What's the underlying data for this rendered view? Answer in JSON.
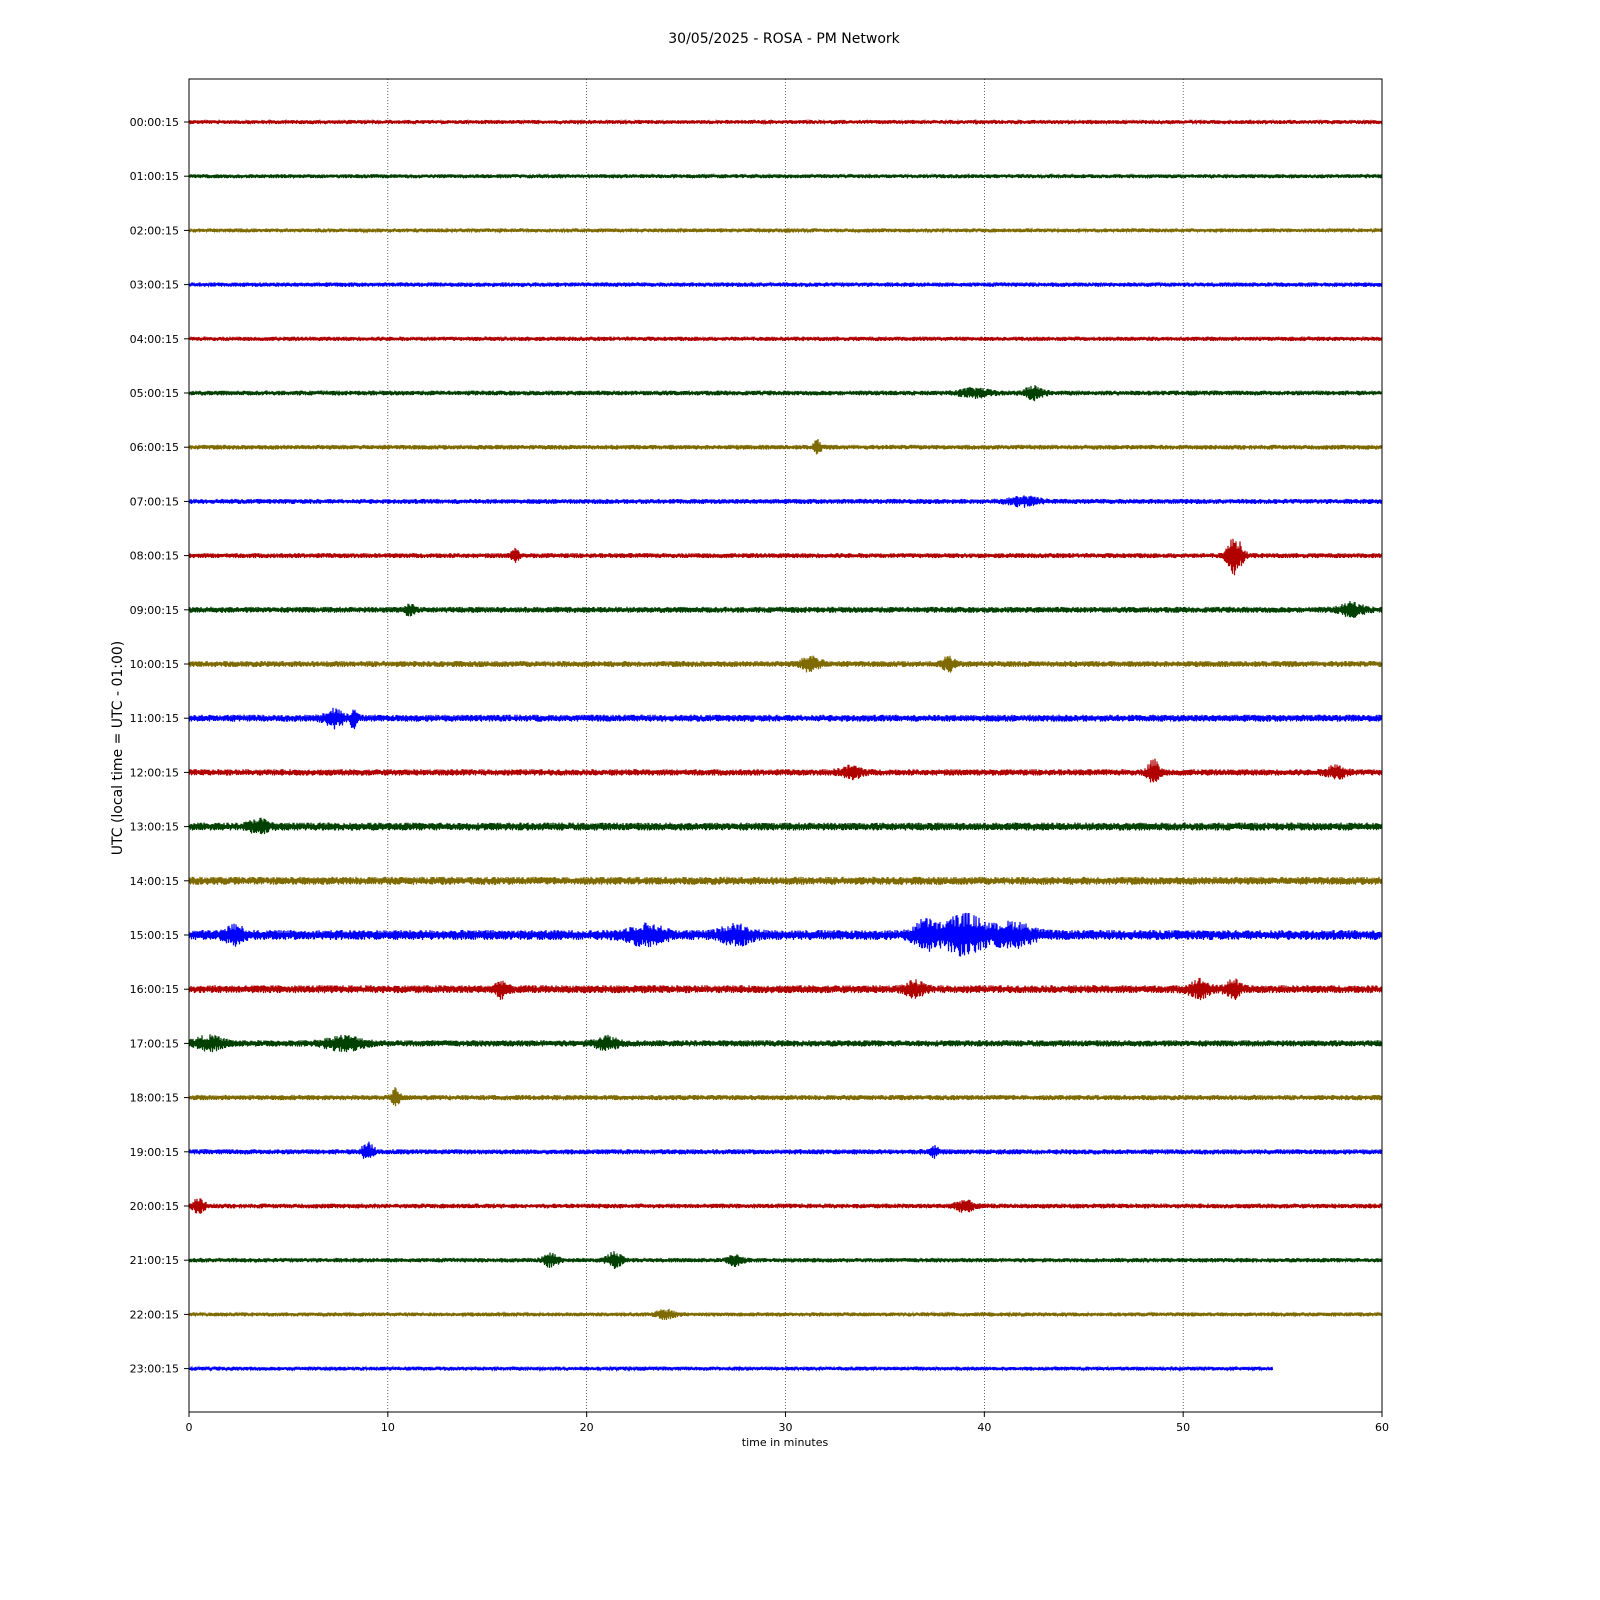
{
  "chart_data": {
    "type": "line",
    "title": "30/05/2025 - ROSA - PM Network",
    "xlabel": "time in minutes",
    "ylabel": "UTC (local time = UTC - 01:00)",
    "xlim": [
      0,
      60
    ],
    "xticks": [
      0,
      10,
      20,
      30,
      40,
      50,
      60
    ],
    "grid": "vertical",
    "series_colors": [
      "#b00000",
      "#004000",
      "#7f6a00",
      "#0000ff"
    ],
    "rows": [
      {
        "label": "00:00:15",
        "end": 60,
        "amp": 2.0,
        "events": []
      },
      {
        "label": "01:00:15",
        "end": 60,
        "amp": 2.0,
        "events": []
      },
      {
        "label": "02:00:15",
        "end": 60,
        "amp": 2.0,
        "events": []
      },
      {
        "label": "03:00:15",
        "end": 60,
        "amp": 2.2,
        "events": []
      },
      {
        "label": "04:00:15",
        "end": 60,
        "amp": 2.2,
        "events": []
      },
      {
        "label": "05:00:15",
        "end": 60,
        "amp": 2.4,
        "events": [
          {
            "t": 39.5,
            "a": 4,
            "w": 0.8
          },
          {
            "t": 42.5,
            "a": 6,
            "w": 0.5
          }
        ]
      },
      {
        "label": "06:00:15",
        "end": 60,
        "amp": 2.4,
        "events": [
          {
            "t": 31.6,
            "a": 6,
            "w": 0.2
          }
        ]
      },
      {
        "label": "07:00:15",
        "end": 60,
        "amp": 2.5,
        "events": [
          {
            "t": 42,
            "a": 4,
            "w": 0.8
          }
        ]
      },
      {
        "label": "08:00:15",
        "end": 60,
        "amp": 2.5,
        "events": [
          {
            "t": 16.4,
            "a": 6,
            "w": 0.2
          },
          {
            "t": 52.6,
            "a": 18,
            "w": 0.4
          }
        ]
      },
      {
        "label": "09:00:15",
        "end": 60,
        "amp": 3.0,
        "events": [
          {
            "t": 11.1,
            "a": 7,
            "w": 0.2
          },
          {
            "t": 58.5,
            "a": 6,
            "w": 0.6
          }
        ]
      },
      {
        "label": "10:00:15",
        "end": 60,
        "amp": 3.0,
        "events": [
          {
            "t": 31.3,
            "a": 7,
            "w": 0.5
          },
          {
            "t": 38.2,
            "a": 7,
            "w": 0.3
          }
        ]
      },
      {
        "label": "11:00:15",
        "end": 60,
        "amp": 3.5,
        "events": [
          {
            "t": 7.3,
            "a": 8,
            "w": 0.5
          },
          {
            "t": 8.3,
            "a": 12,
            "w": 0.15
          }
        ]
      },
      {
        "label": "12:00:15",
        "end": 60,
        "amp": 3.2,
        "events": [
          {
            "t": 33.3,
            "a": 5,
            "w": 0.6
          },
          {
            "t": 48.5,
            "a": 12,
            "w": 0.3
          },
          {
            "t": 57.7,
            "a": 6,
            "w": 0.5
          }
        ]
      },
      {
        "label": "13:00:15",
        "end": 60,
        "amp": 4.0,
        "events": [
          {
            "t": 3.5,
            "a": 6,
            "w": 0.5
          }
        ]
      },
      {
        "label": "14:00:15",
        "end": 60,
        "amp": 4.0,
        "events": []
      },
      {
        "label": "15:00:15",
        "end": 60,
        "amp": 5.0,
        "events": [
          {
            "t": 2.3,
            "a": 7,
            "w": 0.5
          },
          {
            "t": 23,
            "a": 8,
            "w": 1.0
          },
          {
            "t": 27.5,
            "a": 8,
            "w": 0.8
          },
          {
            "t": 37,
            "a": 12,
            "w": 0.6
          },
          {
            "t": 39,
            "a": 18,
            "w": 1.2
          },
          {
            "t": 41.5,
            "a": 10,
            "w": 1.0
          }
        ]
      },
      {
        "label": "16:00:15",
        "end": 60,
        "amp": 4.0,
        "events": [
          {
            "t": 15.7,
            "a": 7,
            "w": 0.3
          },
          {
            "t": 36.5,
            "a": 6,
            "w": 0.5
          },
          {
            "t": 50.8,
            "a": 8,
            "w": 0.5
          },
          {
            "t": 52.5,
            "a": 8,
            "w": 0.4
          }
        ]
      },
      {
        "label": "17:00:15",
        "end": 60,
        "amp": 3.2,
        "events": [
          {
            "t": 1,
            "a": 6,
            "w": 0.8
          },
          {
            "t": 7.8,
            "a": 6,
            "w": 1.0
          },
          {
            "t": 21,
            "a": 6,
            "w": 0.6
          }
        ]
      },
      {
        "label": "18:00:15",
        "end": 60,
        "amp": 2.6,
        "events": [
          {
            "t": 10.4,
            "a": 9,
            "w": 0.2
          }
        ]
      },
      {
        "label": "19:00:15",
        "end": 60,
        "amp": 2.6,
        "events": [
          {
            "t": 9,
            "a": 9,
            "w": 0.3
          },
          {
            "t": 37.5,
            "a": 5,
            "w": 0.2
          }
        ]
      },
      {
        "label": "20:00:15",
        "end": 60,
        "amp": 2.4,
        "events": [
          {
            "t": 0.5,
            "a": 7,
            "w": 0.3
          },
          {
            "t": 39,
            "a": 5,
            "w": 0.5
          }
        ]
      },
      {
        "label": "21:00:15",
        "end": 60,
        "amp": 2.2,
        "events": [
          {
            "t": 18.2,
            "a": 6,
            "w": 0.4
          },
          {
            "t": 21.4,
            "a": 8,
            "w": 0.4
          },
          {
            "t": 27.5,
            "a": 5,
            "w": 0.4
          }
        ]
      },
      {
        "label": "22:00:15",
        "end": 60,
        "amp": 2.0,
        "events": [
          {
            "t": 24,
            "a": 4,
            "w": 0.5
          }
        ]
      },
      {
        "label": "23:00:15",
        "end": 54.5,
        "amp": 2.0,
        "events": []
      }
    ]
  }
}
